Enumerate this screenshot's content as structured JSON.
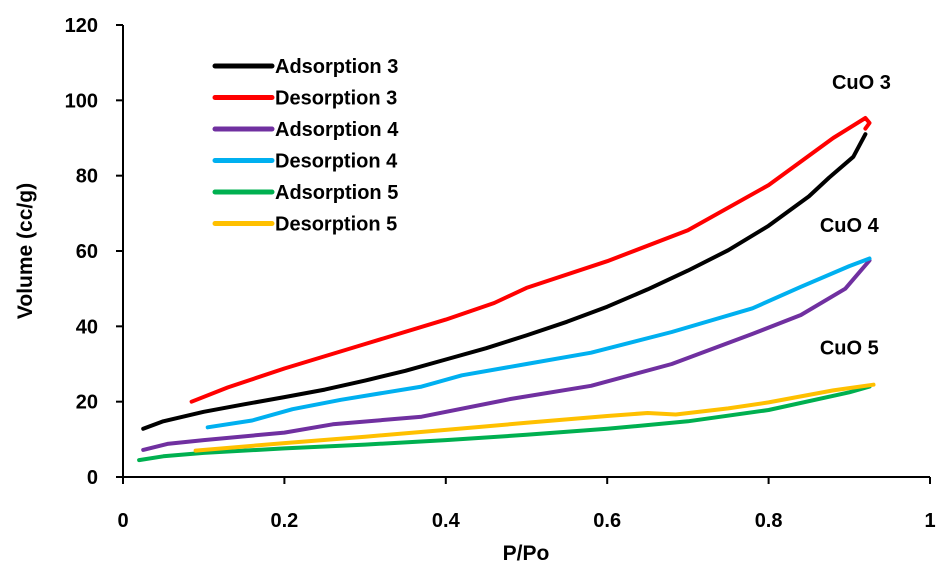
{
  "chart_data": {
    "type": "line",
    "xlabel": "P/Po",
    "ylabel": "Volume (cc/g)",
    "xlim": [
      0,
      1
    ],
    "ylim": [
      0,
      120
    ],
    "xticks": [
      0,
      0.2,
      0.4,
      0.6,
      0.8,
      1
    ],
    "xtick_labels": [
      "0",
      "0.2",
      "0.4",
      "0.6",
      "0.8",
      "1"
    ],
    "yticks": [
      0,
      20,
      40,
      60,
      80,
      100,
      120
    ],
    "ytick_labels": [
      "0",
      "20",
      "40",
      "60",
      "80",
      "100",
      "120"
    ],
    "grid": false,
    "legend_position": "top-left",
    "series": [
      {
        "name": "Adsorption 3",
        "color": "#000000",
        "x": [
          0.025,
          0.05,
          0.1,
          0.15,
          0.2,
          0.25,
          0.3,
          0.35,
          0.4,
          0.45,
          0.5,
          0.55,
          0.6,
          0.65,
          0.7,
          0.75,
          0.8,
          0.85,
          0.875,
          0.905,
          0.92
        ],
        "y": [
          12.8,
          14.8,
          17.3,
          19.3,
          21.2,
          23.2,
          25.6,
          28.2,
          31.2,
          34.2,
          37.6,
          41.2,
          45.2,
          49.8,
          54.8,
          60.2,
          66.7,
          74.5,
          79.5,
          85.0,
          91.0
        ]
      },
      {
        "name": "Desorption 3",
        "color": "#ff0000",
        "x": [
          0.085,
          0.13,
          0.2,
          0.3,
          0.4,
          0.46,
          0.5,
          0.6,
          0.7,
          0.8,
          0.88,
          0.92,
          0.925,
          0.92
        ],
        "y": [
          20,
          23.8,
          28.8,
          35.3,
          41.8,
          46.2,
          50.2,
          57.3,
          65.5,
          77.5,
          90.0,
          95.3,
          94.0,
          92.5
        ]
      },
      {
        "name": "Adsorption 4",
        "color": "#7030a0",
        "x": [
          0.025,
          0.055,
          0.1,
          0.2,
          0.26,
          0.37,
          0.48,
          0.58,
          0.68,
          0.78,
          0.84,
          0.895,
          0.925
        ],
        "y": [
          7.2,
          8.8,
          9.8,
          11.8,
          14.0,
          16.0,
          20.7,
          24.2,
          30.0,
          38.0,
          43.0,
          50.0,
          57.5
        ]
      },
      {
        "name": "Desorption 4",
        "color": "#00b0f0",
        "x": [
          0.105,
          0.16,
          0.21,
          0.27,
          0.37,
          0.42,
          0.5,
          0.58,
          0.68,
          0.78,
          0.84,
          0.9,
          0.925
        ],
        "y": [
          13.2,
          15.0,
          18.0,
          20.5,
          24.0,
          27.0,
          30.0,
          33.0,
          38.5,
          44.8,
          50.5,
          56.0,
          58.0
        ]
      },
      {
        "name": "Adsorption 5",
        "color": "#00b050",
        "x": [
          0.02,
          0.05,
          0.1,
          0.2,
          0.3,
          0.4,
          0.5,
          0.6,
          0.7,
          0.8,
          0.9,
          0.925
        ],
        "y": [
          4.5,
          5.5,
          6.4,
          7.6,
          8.6,
          9.8,
          11.2,
          12.8,
          14.8,
          17.8,
          22.5,
          24.0
        ]
      },
      {
        "name": "Desorption 5",
        "color": "#ffc000",
        "x": [
          0.09,
          0.2,
          0.3,
          0.4,
          0.5,
          0.6,
          0.65,
          0.685,
          0.75,
          0.8,
          0.88,
          0.93
        ],
        "y": [
          7.0,
          9.0,
          10.7,
          12.5,
          14.4,
          16.2,
          17.0,
          16.6,
          18.2,
          19.8,
          23.0,
          24.5
        ]
      }
    ],
    "annotations": [
      {
        "text": "CuO 3",
        "x": 0.915,
        "y": 103
      },
      {
        "text": "CuO 4",
        "x": 0.9,
        "y": 65
      },
      {
        "text": "CuO 5",
        "x": 0.9,
        "y": 32.5
      }
    ]
  }
}
